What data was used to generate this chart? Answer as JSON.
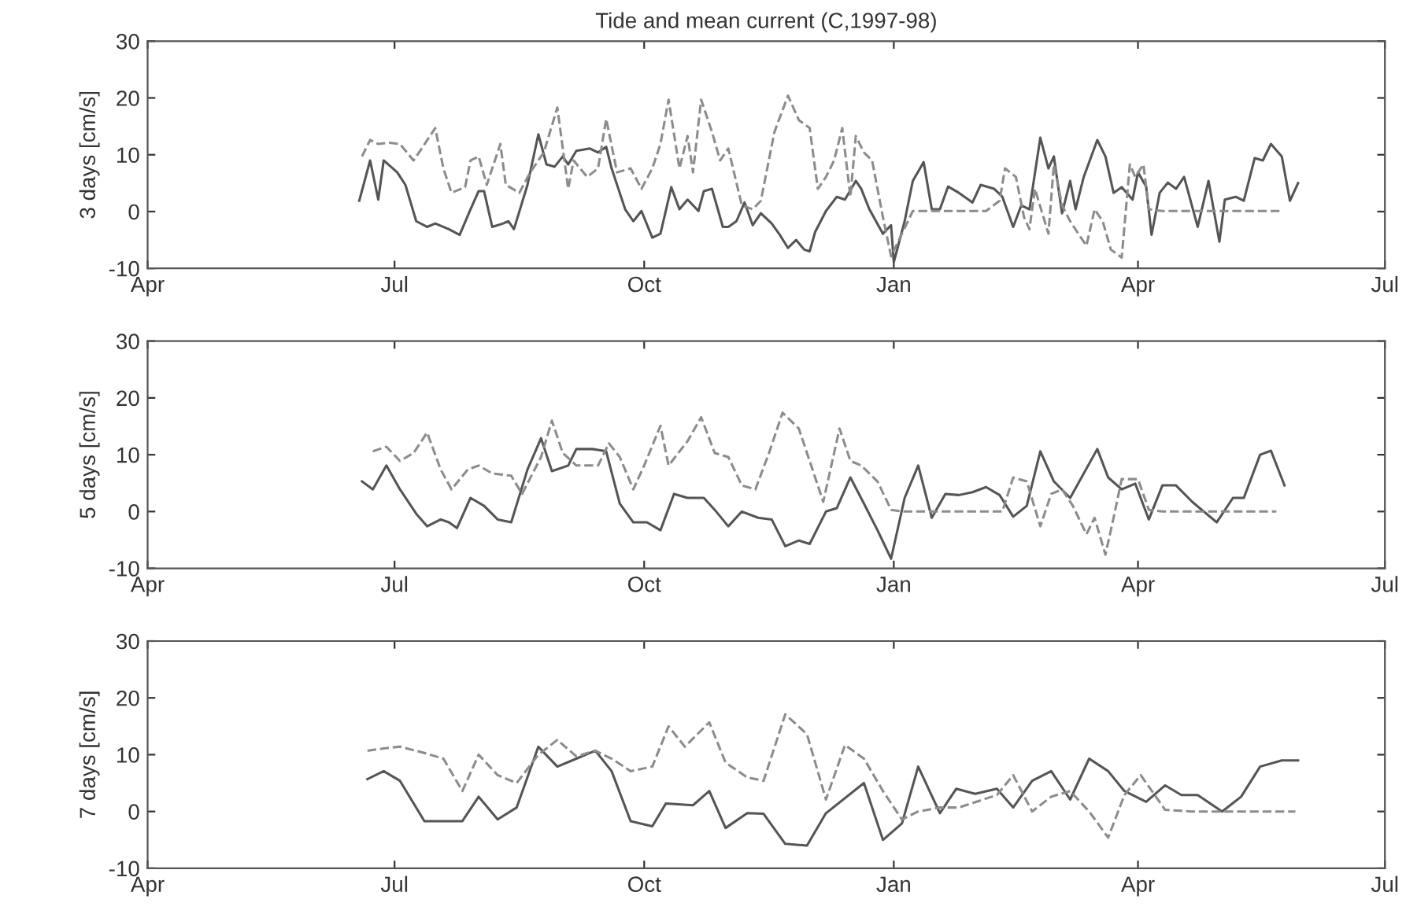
{
  "chart_data": [
    {
      "type": "line",
      "title": "Tide and mean current (C,1997-98)",
      "ylabel": "3 days [cm/s]",
      "xlim": [
        "1997-04-01",
        "1998-07-01"
      ],
      "xticks": [
        {
          "value": "1997-04-01",
          "label": "Apr"
        },
        {
          "value": "1997-07-01",
          "label": "Jul"
        },
        {
          "value": "1997-10-01",
          "label": "Oct"
        },
        {
          "value": "1998-01-01",
          "label": "Jan"
        },
        {
          "value": "1998-04-01",
          "label": "Apr"
        },
        {
          "value": "1998-07-01",
          "label": "Jul"
        }
      ],
      "ylim": [
        -10,
        30
      ],
      "yticks": [
        -10,
        0,
        10,
        20,
        30
      ],
      "grid": false,
      "legend": false,
      "series": [
        {
          "color": "#555555",
          "line_style": "solid",
          "x": [
            "1997-06-18",
            "1997-06-22",
            "1997-06-25",
            "1997-06-27",
            "1997-07-02",
            "1997-07-05",
            "1997-07-09",
            "1997-07-13",
            "1997-07-16",
            "1997-07-21",
            "1997-07-25",
            "1997-07-29",
            "1997-08-01",
            "1997-08-03",
            "1997-08-06",
            "1997-08-10",
            "1997-08-12",
            "1997-08-14",
            "1997-08-19",
            "1997-08-23",
            "1997-08-26",
            "1997-08-29",
            "1997-09-01",
            "1997-09-03",
            "1997-09-06",
            "1997-09-11",
            "1997-09-14",
            "1997-09-17",
            "1997-09-19",
            "1997-09-24",
            "1997-09-27",
            "1997-09-30",
            "1997-10-04",
            "1997-10-07",
            "1997-10-11",
            "1997-10-14",
            "1997-10-17",
            "1997-10-21",
            "1997-10-23",
            "1997-10-26",
            "1997-10-30",
            "1997-11-01",
            "1997-11-04",
            "1997-11-07",
            "1997-11-10",
            "1997-11-13",
            "1997-11-17",
            "1997-11-20",
            "1997-11-23",
            "1997-11-26",
            "1997-11-29",
            "1997-12-01",
            "1997-12-03",
            "1997-12-07",
            "1997-12-11",
            "1997-12-14",
            "1997-12-18",
            "1997-12-20",
            "1997-12-23",
            "1997-12-28",
            "1997-12-31",
            "1998-01-01",
            "1998-01-05",
            "1998-01-08",
            "1998-01-12",
            "1998-01-15",
            "1998-01-18",
            "1998-01-21",
            "1998-01-25",
            "1998-01-30",
            "1998-02-02",
            "1998-02-07",
            "1998-02-10",
            "1998-02-14",
            "1998-02-17",
            "1998-02-20",
            "1998-02-24",
            "1998-02-27",
            "1998-03-01",
            "1998-03-04",
            "1998-03-07",
            "1998-03-09",
            "1998-03-12",
            "1998-03-17",
            "1998-03-20",
            "1998-03-23",
            "1998-03-26",
            "1998-03-30",
            "1998-04-01",
            "1998-04-04",
            "1998-04-06",
            "1998-04-09",
            "1998-04-12",
            "1998-04-15",
            "1998-04-18",
            "1998-04-23",
            "1998-04-27",
            "1998-05-01",
            "1998-05-03",
            "1998-05-07",
            "1998-05-10",
            "1998-05-14",
            "1998-05-17",
            "1998-05-20",
            "1998-05-24",
            "1998-05-27",
            "1998-05-30"
          ],
          "values": [
            1.9,
            9.0,
            2.1,
            9.0,
            6.9,
            4.7,
            -1.7,
            -2.7,
            -2.1,
            -3.1,
            -4.1,
            0.4,
            3.6,
            3.6,
            -2.7,
            -2.1,
            -1.7,
            -3.1,
            4.7,
            13.6,
            8.3,
            7.9,
            9.7,
            8.3,
            10.7,
            11.1,
            10.4,
            11.4,
            7.6,
            0.4,
            -1.7,
            0.1,
            -4.6,
            -3.9,
            4.3,
            0.4,
            2.1,
            0.1,
            3.6,
            4.0,
            -2.7,
            -2.7,
            -1.7,
            1.6,
            -2.4,
            -0.3,
            -2.1,
            -4.1,
            -6.4,
            -5.0,
            -6.7,
            -7.0,
            -3.6,
            0.1,
            2.6,
            2.1,
            5.4,
            4.0,
            0.4,
            -3.9,
            -2.4,
            -8.9,
            -1.7,
            5.4,
            8.7,
            0.4,
            0.4,
            4.4,
            3.3,
            1.6,
            4.7,
            4.0,
            2.6,
            -2.7,
            1.1,
            0.4,
            13.0,
            7.6,
            9.7,
            -0.3,
            5.4,
            0.4,
            6.1,
            12.6,
            9.7,
            3.3,
            4.3,
            2.1,
            6.9,
            4.4,
            -4.1,
            3.3,
            5.1,
            4.0,
            6.1,
            -2.7,
            5.4,
            -5.3,
            2.1,
            2.6,
            1.9,
            9.4,
            9.0,
            11.9,
            9.7,
            1.9,
            5.0
          ]
        },
        {
          "color": "#8c8c8c",
          "line_style": "dashed",
          "x": [
            "1997-06-19",
            "1997-06-22",
            "1997-06-25",
            "1997-06-29",
            "1997-07-03",
            "1997-07-08",
            "1997-07-11",
            "1997-07-16",
            "1997-07-19",
            "1997-07-22",
            "1997-07-27",
            "1997-07-29",
            "1997-08-01",
            "1997-08-04",
            "1997-08-09",
            "1997-08-11",
            "1997-08-16",
            "1997-08-20",
            "1997-08-25",
            "1997-08-30",
            "1997-09-03",
            "1997-09-05",
            "1997-09-10",
            "1997-09-14",
            "1997-09-17",
            "1997-09-21",
            "1997-09-26",
            "1997-09-30",
            "1997-10-04",
            "1997-10-07",
            "1997-10-10",
            "1997-10-14",
            "1997-10-17",
            "1997-10-19",
            "1997-10-22",
            "1997-10-26",
            "1997-10-29",
            "1997-11-01",
            "1997-11-06",
            "1997-11-10",
            "1997-11-13",
            "1997-11-18",
            "1997-11-23",
            "1997-11-27",
            "1997-12-01",
            "1997-12-04",
            "1997-12-07",
            "1997-12-10",
            "1997-12-13",
            "1997-12-16",
            "1997-12-18",
            "1997-12-21",
            "1997-12-24",
            "1997-12-28",
            "1997-12-31",
            "1998-01-04",
            "1998-01-08",
            "1998-01-24",
            "1998-02-04",
            "1998-02-09",
            "1998-02-11",
            "1998-02-15",
            "1998-02-18",
            "1998-02-20",
            "1998-02-22",
            "1998-02-27",
            "1998-03-01",
            "1998-03-04",
            "1998-03-07",
            "1998-03-10",
            "1998-03-13",
            "1998-03-16",
            "1998-03-19",
            "1998-03-22",
            "1998-03-26",
            "1998-03-29",
            "1998-03-31",
            "1998-04-03",
            "1998-04-05",
            "1998-04-10",
            "1998-04-22",
            "1998-05-03",
            "1998-05-24"
          ],
          "values": [
            9.7,
            12.6,
            11.9,
            12.1,
            11.9,
            9.0,
            11.1,
            14.7,
            7.6,
            3.3,
            4.3,
            9.0,
            9.7,
            4.7,
            11.9,
            4.7,
            3.3,
            6.9,
            10.4,
            18.3,
            4.0,
            9.0,
            6.1,
            7.6,
            16.3,
            6.9,
            7.6,
            4.0,
            7.6,
            11.9,
            19.7,
            7.6,
            13.3,
            6.9,
            19.7,
            14.0,
            9.0,
            11.1,
            1.1,
            0.4,
            1.9,
            14.0,
            20.4,
            16.1,
            14.7,
            4.0,
            6.1,
            9.0,
            14.7,
            2.6,
            13.3,
            10.4,
            9.0,
            -1.0,
            -7.9,
            -3.9,
            0.1,
            0.1,
            0.1,
            1.9,
            7.6,
            6.1,
            -1.0,
            -3.1,
            4.0,
            -3.9,
            8.3,
            1.1,
            -1.7,
            -3.9,
            -6.0,
            0.4,
            -1.7,
            -6.7,
            -8.1,
            8.3,
            6.1,
            8.3,
            0.4,
            0.1,
            0.1,
            0.1,
            0.1
          ]
        }
      ]
    },
    {
      "type": "line",
      "ylabel": "5 days [cm/s]",
      "xlim": [
        "1997-04-01",
        "1998-07-01"
      ],
      "xticks": [
        {
          "value": "1997-04-01",
          "label": "Apr"
        },
        {
          "value": "1997-07-01",
          "label": "Jul"
        },
        {
          "value": "1997-10-01",
          "label": "Oct"
        },
        {
          "value": "1998-01-01",
          "label": "Jan"
        },
        {
          "value": "1998-04-01",
          "label": "Apr"
        },
        {
          "value": "1998-07-01",
          "label": "Jul"
        }
      ],
      "ylim": [
        -10,
        30
      ],
      "yticks": [
        -10,
        0,
        10,
        20,
        30
      ],
      "grid": false,
      "legend": false,
      "series": [
        {
          "color": "#555555",
          "line_style": "solid",
          "x": [
            "1997-06-19",
            "1997-06-23",
            "1997-06-28",
            "1997-07-03",
            "1997-07-09",
            "1997-07-13",
            "1997-07-18",
            "1997-07-21",
            "1997-07-24",
            "1997-07-29",
            "1997-08-03",
            "1997-08-08",
            "1997-08-13",
            "1997-08-19",
            "1997-08-24",
            "1997-08-28",
            "1997-09-03",
            "1997-09-06",
            "1997-09-12",
            "1997-09-17",
            "1997-09-22",
            "1997-09-27",
            "1997-10-02",
            "1997-10-07",
            "1997-10-12",
            "1997-10-17",
            "1997-10-23",
            "1997-10-27",
            "1997-11-01",
            "1997-11-06",
            "1997-11-12",
            "1997-11-17",
            "1997-11-22",
            "1997-11-27",
            "1997-12-01",
            "1997-12-07",
            "1997-12-11",
            "1997-12-16",
            "1997-12-21",
            "1997-12-26",
            "1997-12-31",
            "1998-01-05",
            "1998-01-10",
            "1998-01-15",
            "1998-01-20",
            "1998-01-25",
            "1998-01-30",
            "1998-02-04",
            "1998-02-09",
            "1998-02-14",
            "1998-02-19",
            "1998-02-24",
            "1998-03-01",
            "1998-03-07",
            "1998-03-17",
            "1998-03-21",
            "1998-03-26",
            "1998-03-31",
            "1998-04-05",
            "1998-04-10",
            "1998-04-15",
            "1998-04-21",
            "1998-04-30",
            "1998-05-06",
            "1998-05-10",
            "1998-05-16",
            "1998-05-20",
            "1998-05-25"
          ],
          "values": [
            5.3,
            3.9,
            8.1,
            3.9,
            -0.4,
            -2.6,
            -1.4,
            -1.9,
            -2.9,
            2.4,
            1.0,
            -1.4,
            -1.9,
            7.4,
            12.9,
            7.1,
            8.1,
            11.0,
            11.0,
            10.6,
            1.4,
            -1.9,
            -1.9,
            -3.3,
            3.1,
            2.4,
            2.4,
            0.3,
            -2.6,
            0.0,
            -1.1,
            -1.4,
            -6.1,
            -5.1,
            -5.7,
            0.0,
            0.6,
            6.0,
            1.4,
            -3.3,
            -8.3,
            2.4,
            8.1,
            -1.1,
            3.1,
            2.9,
            3.4,
            4.3,
            2.9,
            -0.9,
            1.0,
            10.6,
            5.3,
            2.4,
            11.0,
            6.0,
            3.9,
            4.9,
            -1.4,
            4.6,
            4.6,
            1.7,
            -1.9,
            2.4,
            2.4,
            10.0,
            10.7,
            4.6
          ]
        },
        {
          "color": "#8c8c8c",
          "line_style": "dashed",
          "x": [
            "1997-06-23",
            "1997-06-28",
            "1997-07-03",
            "1997-07-08",
            "1997-07-13",
            "1997-07-18",
            "1997-07-22",
            "1997-07-28",
            "1997-08-01",
            "1997-08-06",
            "1997-08-13",
            "1997-08-17",
            "1997-08-24",
            "1997-08-28",
            "1997-09-01",
            "1997-09-06",
            "1997-09-14",
            "1997-09-18",
            "1997-09-22",
            "1997-09-27",
            "1997-10-01",
            "1997-10-07",
            "1997-10-10",
            "1997-10-17",
            "1997-10-22",
            "1997-10-27",
            "1997-11-01",
            "1997-11-06",
            "1997-11-11",
            "1997-11-16",
            "1997-11-21",
            "1997-11-27",
            "1997-12-01",
            "1997-12-06",
            "1997-12-12",
            "1997-12-16",
            "1997-12-20",
            "1997-12-26",
            "1997-12-31",
            "1998-01-04",
            "1998-02-10",
            "1998-02-14",
            "1998-02-19",
            "1998-02-24",
            "1998-02-28",
            "1998-03-04",
            "1998-03-08",
            "1998-03-13",
            "1998-03-16",
            "1998-03-20",
            "1998-03-23",
            "1998-03-26",
            "1998-04-01",
            "1998-04-05",
            "1998-04-10",
            "1998-05-22"
          ],
          "values": [
            10.6,
            11.4,
            8.9,
            10.3,
            13.9,
            7.4,
            3.9,
            7.4,
            8.1,
            6.7,
            6.3,
            3.1,
            9.6,
            16.0,
            10.3,
            8.1,
            8.1,
            12.0,
            9.6,
            3.9,
            8.1,
            15.1,
            8.1,
            12.4,
            16.6,
            10.3,
            9.6,
            4.6,
            3.9,
            10.3,
            17.4,
            14.6,
            8.9,
            1.7,
            14.6,
            8.9,
            8.1,
            5.3,
            0.3,
            0.0,
            0.0,
            6.0,
            5.3,
            -2.6,
            3.1,
            3.9,
            1.0,
            -4.0,
            -1.1,
            -7.6,
            -1.1,
            5.7,
            5.7,
            0.3,
            0.0,
            0.0
          ]
        }
      ]
    },
    {
      "type": "line",
      "ylabel": "7 days [cm/s]",
      "xlim": [
        "1997-04-01",
        "1998-07-01"
      ],
      "xticks": [
        {
          "value": "1997-04-01",
          "label": "Apr"
        },
        {
          "value": "1997-07-01",
          "label": "Jul"
        },
        {
          "value": "1997-10-01",
          "label": "Oct"
        },
        {
          "value": "1998-01-01",
          "label": "Jan"
        },
        {
          "value": "1998-04-01",
          "label": "Apr"
        },
        {
          "value": "1998-07-01",
          "label": "Jul"
        }
      ],
      "ylim": [
        -10,
        30
      ],
      "yticks": [
        -10,
        0,
        10,
        20,
        30
      ],
      "grid": false,
      "legend": false,
      "series": [
        {
          "color": "#555555",
          "line_style": "solid",
          "x": [
            "1997-06-21",
            "1997-06-27",
            "1997-07-03",
            "1997-07-12",
            "1997-07-26",
            "1997-08-01",
            "1997-08-08",
            "1997-08-15",
            "1997-08-23",
            "1997-08-30",
            "1997-09-06",
            "1997-09-13",
            "1997-09-19",
            "1997-09-26",
            "1997-10-04",
            "1997-10-09",
            "1997-10-19",
            "1997-10-25",
            "1997-10-31",
            "1997-11-08",
            "1997-11-14",
            "1997-11-22",
            "1997-11-30",
            "1997-12-07",
            "1997-12-21",
            "1997-12-28",
            "1998-01-04",
            "1998-01-10",
            "1998-01-18",
            "1998-01-24",
            "1998-01-31",
            "1998-02-08",
            "1998-02-14",
            "1998-02-21",
            "1998-02-28",
            "1998-03-07",
            "1998-03-14",
            "1998-03-21",
            "1998-03-27",
            "1998-04-04",
            "1998-04-11",
            "1998-04-17",
            "1998-04-23",
            "1998-05-02",
            "1998-05-09",
            "1998-05-16",
            "1998-05-24",
            "1998-05-30"
          ],
          "values": [
            5.7,
            7.1,
            5.4,
            -1.7,
            -1.7,
            2.6,
            -1.4,
            0.7,
            11.4,
            7.9,
            9.3,
            10.7,
            7.1,
            -1.7,
            -2.6,
            1.4,
            1.1,
            3.6,
            -2.9,
            -0.3,
            -0.4,
            -5.7,
            -6.0,
            -0.3,
            5.0,
            -5.0,
            -2.1,
            7.9,
            -0.3,
            4.0,
            3.1,
            4.0,
            0.7,
            5.4,
            7.1,
            2.1,
            9.3,
            7.1,
            3.6,
            1.7,
            4.6,
            2.9,
            2.9,
            0.0,
            2.6,
            7.9,
            9.0,
            9.0
          ]
        },
        {
          "color": "#8c8c8c",
          "line_style": "dashed",
          "x": [
            "1997-06-21",
            "1997-06-27",
            "1997-07-03",
            "1997-07-12",
            "1997-07-19",
            "1997-07-26",
            "1997-08-01",
            "1997-08-08",
            "1997-08-15",
            "1997-08-23",
            "1997-08-30",
            "1997-09-06",
            "1997-09-13",
            "1997-09-19",
            "1997-09-26",
            "1997-10-04",
            "1997-10-10",
            "1997-10-16",
            "1997-10-25",
            "1997-10-31",
            "1997-11-08",
            "1997-11-14",
            "1997-11-22",
            "1997-11-30",
            "1997-12-07",
            "1997-12-14",
            "1997-12-21",
            "1997-12-28",
            "1998-01-04",
            "1998-01-10",
            "1998-01-18",
            "1998-01-25",
            "1998-02-08",
            "1998-02-14",
            "1998-02-21",
            "1998-02-28",
            "1998-03-07",
            "1998-03-14",
            "1998-03-21",
            "1998-03-27",
            "1998-04-02",
            "1998-04-11",
            "1998-04-21",
            "1998-05-29"
          ],
          "values": [
            10.7,
            11.1,
            11.4,
            10.3,
            9.3,
            3.6,
            10.0,
            6.4,
            5.0,
            10.0,
            12.6,
            9.7,
            10.7,
            9.3,
            7.1,
            7.9,
            15.0,
            11.4,
            15.7,
            8.6,
            6.0,
            5.4,
            17.1,
            13.6,
            2.1,
            11.7,
            9.3,
            3.6,
            -1.4,
            0.0,
            0.7,
            0.7,
            2.9,
            6.4,
            0.0,
            2.6,
            3.6,
            0.0,
            -4.6,
            2.9,
            6.4,
            0.3,
            0.0,
            0.0
          ]
        }
      ]
    }
  ]
}
